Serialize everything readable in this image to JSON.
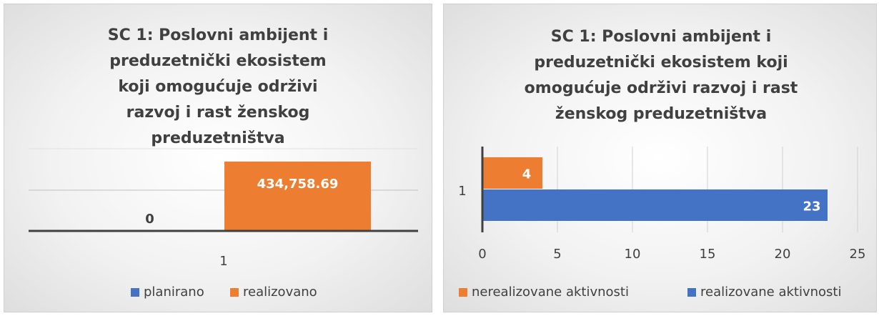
{
  "chart_data": [
    {
      "type": "bar",
      "title": "SC 1: Poslovni ambijent i preduzetnički ekosistem koji omogućuje održivi razvoj i rast ženskog preduzetništva",
      "categories": [
        "1"
      ],
      "series": [
        {
          "name": "planirano",
          "color": "#4472c4",
          "values": [
            0
          ]
        },
        {
          "name": "realizovano",
          "color": "#ed7d31",
          "values": [
            434758.69
          ],
          "value_labels": [
            "434,758.69"
          ]
        }
      ],
      "legend": "bottom"
    },
    {
      "type": "hbar",
      "title": "SC 1: Poslovni ambijent i preduzetnički ekosistem koji omogućuje održivi razvoj i rast ženskog preduzetništva",
      "categories": [
        "1"
      ],
      "series": [
        {
          "name": "nerealizovane aktivnosti",
          "color": "#ed7d31",
          "values": [
            4
          ]
        },
        {
          "name": "realizovane aktivnosti",
          "color": "#4472c4",
          "values": [
            23
          ]
        }
      ],
      "xlim": [
        0,
        25
      ],
      "xticks": [
        0,
        5,
        10,
        15,
        20,
        25
      ],
      "grid": true,
      "legend": "bottom"
    }
  ]
}
